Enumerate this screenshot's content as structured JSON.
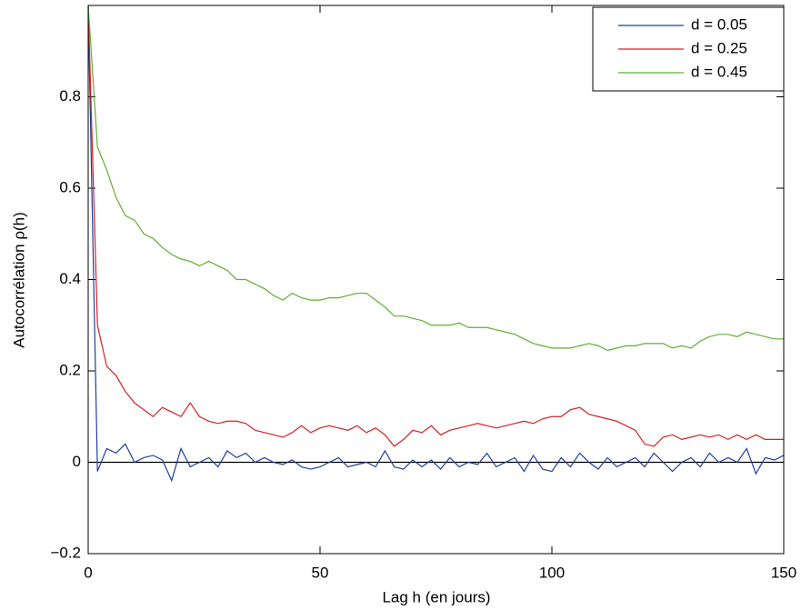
{
  "chart_data": {
    "type": "line",
    "xlabel": "Lag h (en jours)",
    "ylabel": "Autocorrélation ρ(h)",
    "x": [
      0,
      2,
      4,
      6,
      8,
      10,
      12,
      14,
      16,
      18,
      20,
      22,
      24,
      26,
      28,
      30,
      32,
      34,
      36,
      38,
      40,
      42,
      44,
      46,
      48,
      50,
      52,
      54,
      56,
      58,
      60,
      62,
      64,
      66,
      68,
      70,
      72,
      74,
      76,
      78,
      80,
      82,
      84,
      86,
      88,
      90,
      92,
      94,
      96,
      98,
      100,
      102,
      104,
      106,
      108,
      110,
      112,
      114,
      116,
      118,
      120,
      122,
      124,
      126,
      128,
      130,
      132,
      134,
      136,
      138,
      140,
      142,
      144,
      146,
      148,
      150
    ],
    "series": [
      {
        "name": "d = 0.05",
        "color": "#1f3fa0",
        "values": [
          1.0,
          -0.02,
          0.03,
          0.02,
          0.04,
          0.0,
          0.01,
          0.015,
          0.005,
          -0.04,
          0.03,
          -0.01,
          0.0,
          0.01,
          -0.01,
          0.025,
          0.01,
          0.02,
          0.0,
          0.01,
          0.0,
          -0.005,
          0.005,
          -0.01,
          -0.015,
          -0.01,
          0.0,
          0.01,
          -0.01,
          -0.005,
          0.0,
          -0.01,
          0.025,
          -0.01,
          -0.015,
          0.005,
          -0.01,
          0.005,
          -0.015,
          0.01,
          -0.01,
          0.0,
          -0.005,
          0.02,
          -0.01,
          0.0,
          0.01,
          -0.02,
          0.015,
          -0.015,
          -0.02,
          0.01,
          -0.01,
          0.02,
          0.0,
          -0.015,
          0.01,
          -0.01,
          0.0,
          0.01,
          -0.01,
          0.02,
          0.0,
          -0.02,
          0.0,
          0.01,
          -0.01,
          0.02,
          0.0,
          0.01,
          0.0,
          0.03,
          -0.025,
          0.01,
          0.005,
          0.015
        ]
      },
      {
        "name": "d = 0.25",
        "color": "#d62020",
        "values": [
          1.0,
          0.3,
          0.21,
          0.19,
          0.155,
          0.13,
          0.115,
          0.1,
          0.12,
          0.11,
          0.1,
          0.13,
          0.1,
          0.09,
          0.085,
          0.09,
          0.09,
          0.085,
          0.07,
          0.065,
          0.06,
          0.055,
          0.065,
          0.08,
          0.065,
          0.075,
          0.08,
          0.075,
          0.07,
          0.08,
          0.065,
          0.075,
          0.06,
          0.035,
          0.05,
          0.07,
          0.065,
          0.08,
          0.06,
          0.07,
          0.075,
          0.08,
          0.085,
          0.08,
          0.075,
          0.08,
          0.085,
          0.09,
          0.085,
          0.095,
          0.1,
          0.1,
          0.115,
          0.12,
          0.105,
          0.1,
          0.095,
          0.09,
          0.08,
          0.07,
          0.04,
          0.035,
          0.055,
          0.06,
          0.05,
          0.055,
          0.06,
          0.055,
          0.06,
          0.05,
          0.06,
          0.05,
          0.06,
          0.05,
          0.05,
          0.05
        ]
      },
      {
        "name": "d = 0.45",
        "color": "#5cb030",
        "values": [
          1.0,
          0.69,
          0.64,
          0.58,
          0.54,
          0.53,
          0.5,
          0.49,
          0.47,
          0.455,
          0.445,
          0.44,
          0.43,
          0.44,
          0.43,
          0.42,
          0.4,
          0.4,
          0.39,
          0.38,
          0.365,
          0.355,
          0.37,
          0.36,
          0.355,
          0.355,
          0.36,
          0.36,
          0.365,
          0.37,
          0.37,
          0.355,
          0.34,
          0.32,
          0.32,
          0.315,
          0.31,
          0.3,
          0.3,
          0.3,
          0.305,
          0.295,
          0.295,
          0.295,
          0.29,
          0.285,
          0.28,
          0.27,
          0.26,
          0.255,
          0.25,
          0.25,
          0.25,
          0.255,
          0.26,
          0.255,
          0.245,
          0.25,
          0.255,
          0.255,
          0.26,
          0.26,
          0.26,
          0.25,
          0.255,
          0.25,
          0.265,
          0.275,
          0.28,
          0.28,
          0.275,
          0.285,
          0.28,
          0.275,
          0.27,
          0.27
        ]
      }
    ],
    "hlines": [
      0
    ],
    "xlim": [
      0,
      150
    ],
    "xticks": [
      0,
      50,
      100,
      150
    ],
    "ylim": [
      -0.2,
      1.0
    ],
    "yticks": [
      {
        "value": -0.2,
        "label": "−0.2"
      },
      0,
      0.2,
      0.4,
      0.6,
      0.8
    ],
    "legend": "upper right",
    "grid": false
  }
}
